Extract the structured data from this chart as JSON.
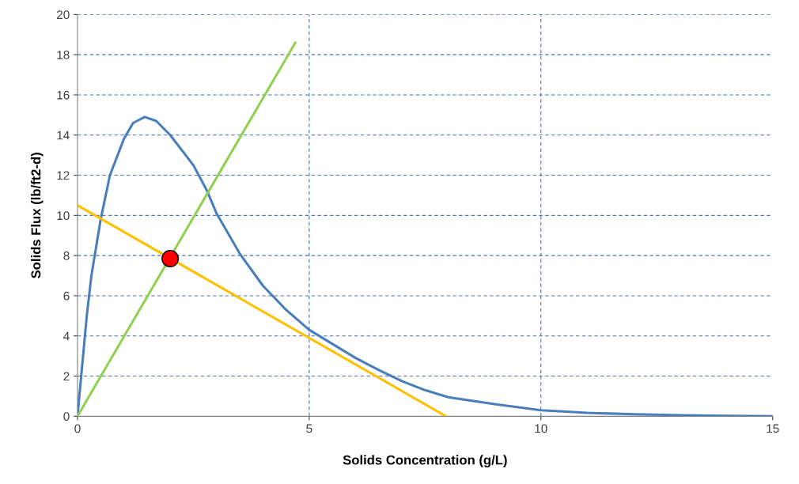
{
  "chart_data": {
    "type": "line",
    "xlabel": "Solids Concentration (g/L)",
    "ylabel": "Solids Flux (lb/ft2-d)",
    "xlim": [
      0,
      15
    ],
    "xticks": [
      0,
      5,
      10,
      15
    ],
    "ylim": [
      0,
      20
    ],
    "yticks": [
      0,
      2,
      4,
      6,
      8,
      10,
      12,
      14,
      16,
      18,
      20
    ],
    "grid": true,
    "line_style": "solid",
    "series": [
      {
        "color": "#4a7ebb",
        "marker": "none",
        "x": [
          0,
          0.1,
          0.2,
          0.3,
          0.5,
          0.7,
          1,
          1.2,
          1.45,
          1.7,
          2,
          2.5,
          2.8,
          3,
          3.5,
          4,
          4.5,
          5,
          5.5,
          6,
          6.5,
          7,
          7.5,
          8,
          9,
          10,
          11,
          12,
          13,
          14,
          15
        ],
        "values": [
          0,
          2.5,
          5,
          7,
          9.8,
          12,
          13.8,
          14.6,
          14.9,
          14.7,
          14,
          12.5,
          11.2,
          10.1,
          8.1,
          6.5,
          5.3,
          4.3,
          3.6,
          2.9,
          2.3,
          1.75,
          1.3,
          0.95,
          0.6,
          0.3,
          0.17,
          0.1,
          0.05,
          0.02,
          0
        ]
      },
      {
        "color": "#92d050",
        "marker": "none",
        "x": [
          0,
          4.7
        ],
        "values": [
          0,
          18.6
        ]
      },
      {
        "color": "#ffc000",
        "marker": "none",
        "x": [
          0,
          7.95
        ],
        "values": [
          10.5,
          0
        ]
      },
      {
        "type": "scatter",
        "color": "#ff0000",
        "marker": "circle",
        "x": [
          2
        ],
        "values": [
          7.85
        ]
      }
    ]
  }
}
